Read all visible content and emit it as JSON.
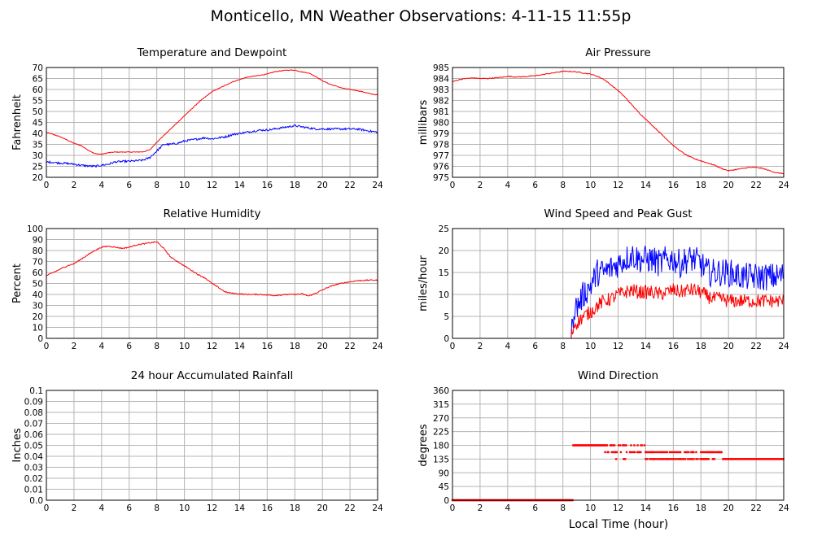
{
  "figure": {
    "title": "Monticello, MN Weather Observations: 4-11-15 11:55p",
    "xlabel": "Local Time (hour)"
  },
  "chart_data": [
    {
      "type": "line",
      "title": "Temperature and Dewpoint",
      "xlabel": "",
      "ylabel": "Fahrenheit",
      "xlim": [
        0,
        24
      ],
      "ylim": [
        20,
        70
      ],
      "xticks": [
        "0",
        "2",
        "4",
        "6",
        "8",
        "10",
        "12",
        "14",
        "16",
        "18",
        "20",
        "22",
        "24"
      ],
      "yticks": [
        "20",
        "25",
        "30",
        "35",
        "40",
        "45",
        "50",
        "55",
        "60",
        "65",
        "70"
      ],
      "grid": true,
      "series": [
        {
          "color": "#ff0000",
          "noise": 0.15,
          "x": [
            0,
            0.5,
            1,
            1.5,
            2,
            2.5,
            3,
            3.5,
            4,
            4.5,
            5,
            5.5,
            6,
            6.5,
            7,
            7.5,
            8,
            8.5,
            9,
            9.5,
            10,
            10.5,
            11,
            11.5,
            12,
            12.5,
            13,
            13.5,
            14,
            14.5,
            15,
            15.5,
            16,
            16.5,
            17,
            17.5,
            18,
            18.5,
            19,
            19.5,
            20,
            20.5,
            21,
            21.5,
            22,
            22.5,
            23,
            23.5,
            24
          ],
          "values": [
            40.5,
            39.5,
            38.5,
            37,
            35.5,
            34.5,
            32.5,
            30.8,
            30.5,
            31.2,
            31.5,
            31.5,
            31.5,
            31.5,
            31.6,
            32.5,
            36,
            39,
            42,
            45,
            48,
            51,
            54,
            56.5,
            59,
            60.5,
            62,
            63.5,
            64.5,
            65.5,
            66,
            66.5,
            67,
            68,
            68.5,
            68.8,
            68.8,
            68,
            67.5,
            66,
            64,
            62.5,
            61.5,
            60.5,
            60,
            59.5,
            58.8,
            58,
            57.5
          ]
        },
        {
          "color": "#0000ff",
          "noise": 0.45,
          "x": [
            0,
            0.5,
            1,
            1.5,
            2,
            2.5,
            3,
            3.5,
            4,
            4.5,
            5,
            5.5,
            6,
            6.5,
            7,
            7.5,
            8,
            8.5,
            9,
            9.5,
            10,
            10.5,
            11,
            11.5,
            12,
            12.5,
            13,
            13.5,
            14,
            14.5,
            15,
            15.5,
            16,
            16.5,
            17,
            17.5,
            18,
            18.5,
            19,
            19.5,
            20,
            20.5,
            21,
            21.5,
            22,
            22.5,
            23,
            23.5,
            24
          ],
          "values": [
            27,
            26.8,
            26.5,
            26.3,
            26,
            25.5,
            25.2,
            25,
            25.5,
            26,
            27,
            27.2,
            27.3,
            27.5,
            27.8,
            29,
            32,
            35,
            35,
            35.5,
            36.5,
            37,
            37.5,
            38,
            37.5,
            38,
            38.5,
            39.5,
            40,
            40.5,
            41,
            41.5,
            41.5,
            42,
            42.5,
            43,
            43.5,
            43,
            42.5,
            42,
            42,
            42,
            42,
            42,
            42,
            42,
            41.5,
            41,
            40.5
          ]
        }
      ]
    },
    {
      "type": "line",
      "title": "Air Pressure",
      "xlabel": "",
      "ylabel": "millibars",
      "xlim": [
        0,
        24
      ],
      "ylim": [
        975,
        985
      ],
      "xticks": [
        "0",
        "2",
        "4",
        "6",
        "8",
        "10",
        "12",
        "14",
        "16",
        "18",
        "20",
        "22",
        "24"
      ],
      "yticks": [
        "975",
        "976",
        "977",
        "978",
        "979",
        "980",
        "981",
        "982",
        "983",
        "984",
        "985"
      ],
      "grid": true,
      "series": [
        {
          "color": "#ff0000",
          "noise": 0.04,
          "x": [
            0,
            0.5,
            1,
            1.5,
            2,
            2.5,
            3,
            3.5,
            4,
            4.5,
            5,
            5.5,
            6,
            6.5,
            7,
            7.5,
            8,
            8.5,
            9,
            9.5,
            10,
            10.5,
            11,
            11.5,
            12,
            12.5,
            13,
            13.5,
            14,
            14.5,
            15,
            15.5,
            16,
            16.5,
            17,
            17.5,
            18,
            18.5,
            19,
            19.5,
            20,
            20.5,
            21,
            21.5,
            22,
            22.5,
            23,
            23.5,
            24
          ],
          "values": [
            983.7,
            983.9,
            984,
            984.05,
            984,
            984,
            984.05,
            984.1,
            984.2,
            984.15,
            984.15,
            984.2,
            984.25,
            984.35,
            984.45,
            984.55,
            984.65,
            984.65,
            984.6,
            984.5,
            984.4,
            984.2,
            983.9,
            983.4,
            982.9,
            982.3,
            981.6,
            980.9,
            980.3,
            979.7,
            979.1,
            978.5,
            977.9,
            977.4,
            977,
            976.7,
            976.5,
            976.3,
            976.1,
            975.8,
            975.6,
            975.7,
            975.8,
            975.9,
            975.9,
            975.8,
            975.6,
            975.4,
            975.35
          ]
        }
      ]
    },
    {
      "type": "line",
      "title": "Relative Humidity",
      "xlabel": "",
      "ylabel": "Percent",
      "xlim": [
        0,
        24
      ],
      "ylim": [
        0,
        100
      ],
      "xticks": [
        "0",
        "2",
        "4",
        "6",
        "8",
        "10",
        "12",
        "14",
        "16",
        "18",
        "20",
        "22",
        "24"
      ],
      "yticks": [
        "0",
        "10",
        "20",
        "30",
        "40",
        "50",
        "60",
        "70",
        "80",
        "90",
        "100"
      ],
      "grid": true,
      "series": [
        {
          "color": "#ff0000",
          "noise": 0.5,
          "x": [
            0,
            0.5,
            1,
            1.5,
            2,
            2.5,
            3,
            3.5,
            4,
            4.5,
            5,
            5.5,
            6,
            6.5,
            7,
            7.5,
            8,
            8.5,
            9,
            9.5,
            10,
            10.5,
            11,
            11.5,
            12,
            12.5,
            13,
            13.5,
            14,
            14.5,
            15,
            15.5,
            16,
            16.5,
            17,
            17.5,
            18,
            18.5,
            19,
            19.5,
            20,
            20.5,
            21,
            21.5,
            22,
            22.5,
            23,
            23.5,
            24
          ],
          "values": [
            57,
            60,
            63,
            66,
            68,
            72,
            76,
            80,
            83,
            84,
            83,
            82,
            83,
            85,
            86,
            87,
            88,
            82,
            74,
            70,
            66,
            62,
            58,
            55,
            50,
            46,
            42,
            41,
            40.5,
            40,
            40,
            40,
            39.5,
            39,
            39.5,
            40,
            40,
            40.5,
            38.5,
            41,
            44,
            47,
            49,
            50.5,
            51.5,
            52.5,
            52.8,
            53,
            53
          ]
        }
      ]
    },
    {
      "type": "line",
      "title": "Wind Speed and Peak Gust",
      "xlabel": "",
      "ylabel": "miles/hour",
      "xlim": [
        0,
        24
      ],
      "ylim": [
        0,
        25
      ],
      "xticks": [
        "0",
        "2",
        "4",
        "6",
        "8",
        "10",
        "12",
        "14",
        "16",
        "18",
        "20",
        "22",
        "24"
      ],
      "yticks": [
        "0",
        "5",
        "10",
        "15",
        "20",
        "25"
      ],
      "grid": true,
      "series": [
        {
          "color": "#0000ff",
          "noise": 3.2,
          "x": [
            0,
            8.5,
            8.6,
            8.8,
            9,
            9.5,
            10,
            10.5,
            11,
            11.5,
            12,
            12.5,
            13,
            13.5,
            14,
            14.5,
            15,
            15.5,
            16,
            16.5,
            17,
            17.5,
            18,
            18.5,
            19,
            19.5,
            20,
            20.5,
            21,
            21.5,
            22,
            22.5,
            23,
            23.5,
            24
          ],
          "values": [
            0,
            0,
            0,
            7,
            7,
            10,
            12,
            15,
            15,
            16,
            17,
            18,
            19,
            18,
            18,
            18,
            17,
            18,
            18,
            17,
            18,
            18,
            17,
            15,
            15,
            15,
            15,
            14.5,
            14,
            14,
            14,
            14,
            14,
            14,
            14.5
          ]
        },
        {
          "color": "#ff0000",
          "noise": 1.6,
          "x": [
            0,
            8.5,
            8.6,
            8.8,
            9,
            9.5,
            10,
            10.5,
            11,
            11.5,
            12,
            12.5,
            13,
            13.5,
            14,
            14.5,
            15,
            15.5,
            16,
            16.5,
            17,
            17.5,
            18,
            18.5,
            19,
            19.5,
            20,
            20.5,
            21,
            21.5,
            22,
            22.5,
            23,
            23.5,
            24
          ],
          "values": [
            0,
            0,
            0,
            3,
            3.5,
            5,
            6,
            7.5,
            8.5,
            9,
            10,
            10.5,
            11,
            10.5,
            10.5,
            10.5,
            10,
            10.5,
            11,
            10.5,
            11,
            11,
            10.5,
            9.5,
            9,
            9,
            8.5,
            8.5,
            8.5,
            8.5,
            8.5,
            8.5,
            8.5,
            8.5,
            8.5
          ]
        }
      ]
    },
    {
      "type": "line",
      "title": "24 hour Accumulated Rainfall",
      "xlabel": "",
      "ylabel": "Inches",
      "xlim": [
        0,
        24
      ],
      "ylim": [
        0,
        0.1
      ],
      "xticks": [
        "0",
        "2",
        "4",
        "6",
        "8",
        "10",
        "12",
        "14",
        "16",
        "18",
        "20",
        "22",
        "24"
      ],
      "yticks": [
        "0.0",
        "0.01",
        "0.02",
        "0.03",
        "0.04",
        "0.05",
        "0.06",
        "0.07",
        "0.08",
        "0.09",
        "0.1"
      ],
      "grid": true,
      "series": [
        {
          "color": "#ff0000",
          "noise": 0,
          "x": [
            0,
            24
          ],
          "values": [
            0,
            0
          ]
        }
      ]
    },
    {
      "type": "scatter",
      "title": "Wind Direction",
      "xlabel": "",
      "ylabel": "degrees",
      "xlim": [
        0,
        24
      ],
      "ylim": [
        0,
        360
      ],
      "xticks": [
        "0",
        "2",
        "4",
        "6",
        "8",
        "10",
        "12",
        "14",
        "16",
        "18",
        "20",
        "22",
        "24"
      ],
      "yticks": [
        "0",
        "45",
        "90",
        "135",
        "180",
        "225",
        "270",
        "315",
        "360"
      ],
      "grid": true,
      "series": [
        {
          "color": "#ff0000",
          "segments": [
            {
              "x0": 0,
              "x1": 8.75,
              "y": 0,
              "density": 1.0
            },
            {
              "x0": 8.75,
              "x1": 11.2,
              "y": 180,
              "density": 1.0
            },
            {
              "x0": 11.2,
              "x1": 14.0,
              "y": 180,
              "density": 0.5
            },
            {
              "x0": 11.0,
              "x1": 14.0,
              "y": 157.5,
              "density": 0.55
            },
            {
              "x0": 14.0,
              "x1": 18.0,
              "y": 157.5,
              "density": 0.45
            },
            {
              "x0": 18.0,
              "x1": 19.5,
              "y": 157.5,
              "density": 0.9
            },
            {
              "x0": 11.8,
              "x1": 12.0,
              "y": 135,
              "density": 0.6
            },
            {
              "x0": 12.4,
              "x1": 12.6,
              "y": 135,
              "density": 0.6
            },
            {
              "x0": 14.0,
              "x1": 19.0,
              "y": 135,
              "density": 0.6
            },
            {
              "x0": 19.6,
              "x1": 24.0,
              "y": 135,
              "density": 1.0
            }
          ]
        }
      ]
    }
  ]
}
